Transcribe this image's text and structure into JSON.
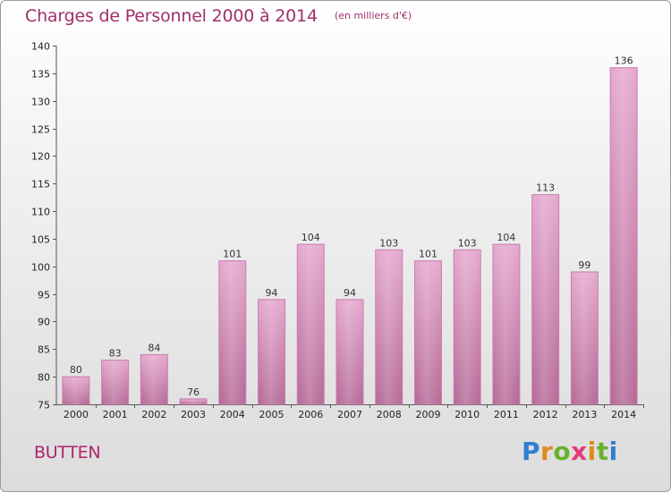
{
  "header": {
    "title": "Charges de Personnel 2000 à 2014",
    "subtitle": "(en milliers d'€)"
  },
  "footer": {
    "commune": "BUTTEN",
    "brand": "Proxiti"
  },
  "colors": {
    "bar_fill_top": "#e3a6cc",
    "bar_fill_bottom": "#b56a97",
    "title": "#a0306a",
    "brand_blue": "#2f7fcf",
    "brand_orange": "#e08a1a",
    "brand_green": "#67b22c",
    "brand_pink": "#e53a78"
  },
  "chart_data": {
    "type": "bar",
    "title": "Charges de Personnel 2000 à 2014",
    "subtitle": "(en milliers d'€)",
    "categories": [
      "2000",
      "2001",
      "2002",
      "2003",
      "2004",
      "2005",
      "2006",
      "2007",
      "2008",
      "2009",
      "2010",
      "2011",
      "2012",
      "2013",
      "2014"
    ],
    "values": [
      80,
      83,
      84,
      76,
      101,
      94,
      104,
      94,
      103,
      101,
      103,
      104,
      113,
      99,
      136
    ],
    "ylim": [
      75,
      140
    ],
    "yticks": [
      75,
      80,
      85,
      90,
      95,
      100,
      105,
      110,
      115,
      120,
      125,
      130,
      135,
      140
    ],
    "xlabel": "",
    "ylabel": "",
    "grid": false,
    "data_labels": true
  }
}
